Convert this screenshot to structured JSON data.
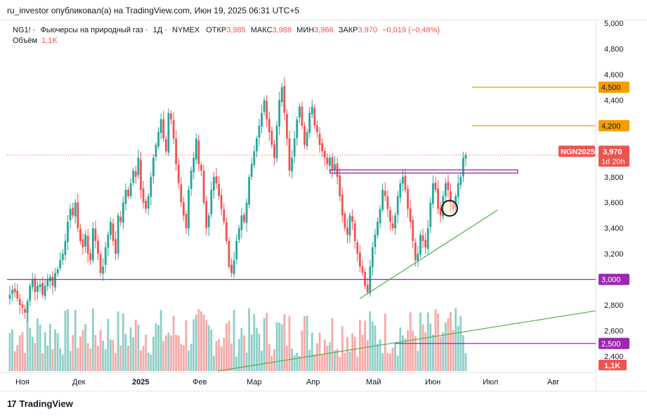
{
  "header": {
    "publisher": "ru_investor опубликовал(а) на TradingView.com, Июн 19, 2025 06:31 UTC+5"
  },
  "legend": {
    "symbol": "NG1!",
    "name": "Фьючерсы на природный газ",
    "interval": "1Д",
    "exchange": "NYMEX",
    "open_label": "ОТКР",
    "open": "3,985",
    "high_label": "МАКС",
    "high": "3,988",
    "low_label": "МИН",
    "low": "3,966",
    "close_label": "ЗАКР",
    "close": "3,970",
    "change": "−0,019 (−0,48%)",
    "volume_label": "Объём",
    "volume": "1,1K"
  },
  "price_axis": {
    "ticks": [
      "5,000",
      "4,800",
      "4,600",
      "4,400",
      "4,200",
      "4,000",
      "3,800",
      "3,600",
      "3,400",
      "3,200",
      "3,000",
      "2,800",
      "2,600",
      "2,400"
    ],
    "tick_values": [
      5.0,
      4.8,
      4.6,
      4.4,
      4.2,
      4.0,
      3.8,
      3.6,
      3.4,
      3.2,
      3.0,
      2.8,
      2.6,
      2.4
    ],
    "badges": {
      "level_4500": "4,500",
      "level_4200": "4,200",
      "symbol": "NGN2025",
      "last_price": "3,970",
      "countdown": "1d 20h",
      "level_3000": "3,000",
      "level_2500": "2,500",
      "volume": "1,1K"
    }
  },
  "time_axis": {
    "labels": [
      "Ноя",
      "Дек",
      "2025",
      "Фев",
      "Мар",
      "Апр",
      "Май",
      "Июн",
      "Июл",
      "Авг"
    ]
  },
  "footer": {
    "brand": "TradingView"
  },
  "colors": {
    "up": "#26a69a",
    "down": "#ef5350",
    "up_volume": "#8fcfc8",
    "down_volume": "#f7a9a7",
    "level_orange": "#f59d00",
    "level_purple": "#9c27b0",
    "trend_green": "#4caf50"
  },
  "chart_data": {
    "type": "candlestick",
    "title": "NG1! · Фьючерсы на природный газ · 1Д · NYMEX",
    "price_range": [
      2.3,
      5.01
    ],
    "x_axis_months": [
      "Ноя",
      "Дек",
      "2025",
      "Фев",
      "Мар",
      "Апр",
      "Май",
      "Июн",
      "Июл",
      "Авг"
    ],
    "series": [
      {
        "name": "price_path",
        "note": "approximate daily closes read from chart",
        "values": [
          2.88,
          2.92,
          2.9,
          2.85,
          2.8,
          2.78,
          2.74,
          2.83,
          2.95,
          3.0,
          2.9,
          2.95,
          2.96,
          2.88,
          2.95,
          3.0,
          3.02,
          2.95,
          3.05,
          3.08,
          3.15,
          3.2,
          3.3,
          3.45,
          3.55,
          3.5,
          3.6,
          3.4,
          3.3,
          3.25,
          3.35,
          3.2,
          3.15,
          3.4,
          3.3,
          3.2,
          3.05,
          3.1,
          3.25,
          3.35,
          3.45,
          3.3,
          3.2,
          3.5,
          3.45,
          3.6,
          3.7,
          3.65,
          3.75,
          3.85,
          3.8,
          3.95,
          3.7,
          3.6,
          3.55,
          3.65,
          3.8,
          3.95,
          4.05,
          4.15,
          4.25,
          4.1,
          4.0,
          4.3,
          4.25,
          4.1,
          3.9,
          3.75,
          3.6,
          3.5,
          3.4,
          3.7,
          3.85,
          3.95,
          4.1,
          3.9,
          3.85,
          3.6,
          3.4,
          3.5,
          3.7,
          3.8,
          3.75,
          3.65,
          3.55,
          3.45,
          3.3,
          3.1,
          3.05,
          3.15,
          3.3,
          3.4,
          3.5,
          3.45,
          3.6,
          3.8,
          3.9,
          4.0,
          4.1,
          4.2,
          4.3,
          4.4,
          4.25,
          4.15,
          4.05,
          3.95,
          4.2,
          4.4,
          4.5,
          4.3,
          4.1,
          3.85,
          3.95,
          4.1,
          4.25,
          4.35,
          4.2,
          4.05,
          4.15,
          4.3,
          4.35,
          4.2,
          4.15,
          4.05,
          4.0,
          3.95,
          3.9,
          3.95,
          3.85,
          3.9,
          3.8,
          3.65,
          3.5,
          3.4,
          3.35,
          3.5,
          3.45,
          3.3,
          3.2,
          3.1,
          3.05,
          2.95,
          2.9,
          3.1,
          3.25,
          3.35,
          3.45,
          3.55,
          3.7,
          3.65,
          3.55,
          3.45,
          3.4,
          3.5,
          3.65,
          3.75,
          3.8,
          3.7,
          3.55,
          3.45,
          3.3,
          3.15,
          3.2,
          3.35,
          3.3,
          3.25,
          3.4,
          3.6,
          3.75,
          3.7,
          3.55,
          3.5,
          3.65,
          3.75,
          3.7,
          3.6,
          3.55,
          3.65,
          3.75,
          3.8,
          3.95,
          3.97
        ]
      }
    ],
    "horizontal_levels": [
      4.5,
      4.2,
      3.83,
      3.0,
      2.5
    ],
    "last_price": 3.97,
    "volume_last": "1,1K"
  }
}
